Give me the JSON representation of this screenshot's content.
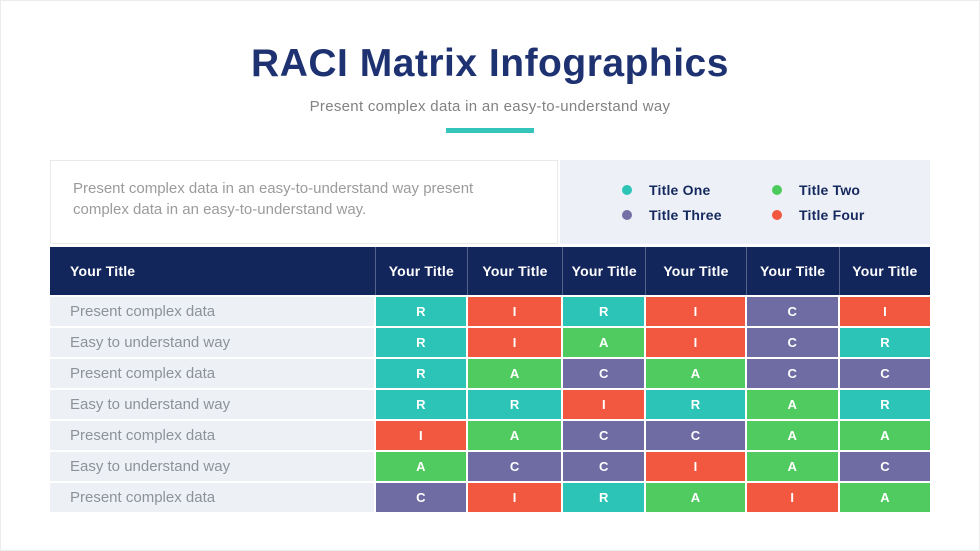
{
  "header": {
    "title": "RACI Matrix Infographics",
    "subtitle": "Present complex data in an easy-to-understand way"
  },
  "intro": {
    "text": "Present complex data in an easy-to-understand way present complex data in an easy-to-understand way."
  },
  "legend": {
    "items": [
      {
        "label": "Title One",
        "color": "#2BC4B6"
      },
      {
        "label": "Title Two",
        "color": "#4CCB5C"
      },
      {
        "label": "Title Three",
        "color": "#7470A5"
      },
      {
        "label": "Title Four",
        "color": "#F2573F"
      }
    ]
  },
  "colors": {
    "teal": "#2BC4B6",
    "green": "#50CB60",
    "purple": "#6F6CA4",
    "orange": "#F2583F",
    "header_navy": "#13265C",
    "title_navy": "#1E3272",
    "accent_teal": "#35C4BB",
    "legend_bg": "#EDF1F7",
    "row_label_bg": "#EDF1F6"
  },
  "chart_data": {
    "type": "table",
    "title": "RACI Matrix Infographics",
    "subtitle": "Present complex data in an easy-to-understand way",
    "legend_entries": [
      "Title One",
      "Title Two",
      "Title Three",
      "Title Four"
    ],
    "legend_position": "top-right",
    "columns": [
      "Your Title",
      "Your Title",
      "Your Title",
      "Your Title",
      "Your Title",
      "Your Title",
      "Your Title"
    ],
    "letter_colors": {
      "R": "teal",
      "A": "green",
      "C": "purple",
      "I": "orange"
    },
    "rows": [
      {
        "label": "Present complex data",
        "values": [
          "R",
          "I",
          "R",
          "I",
          "C",
          "I"
        ]
      },
      {
        "label": "Easy to understand way",
        "values": [
          "R",
          "I",
          "A",
          "I",
          "C",
          "R"
        ]
      },
      {
        "label": "Present complex data",
        "values": [
          "R",
          "A",
          "C",
          "A",
          "C",
          "C"
        ]
      },
      {
        "label": "Easy to understand way",
        "values": [
          "R",
          "R",
          "I",
          "R",
          "A",
          "R"
        ]
      },
      {
        "label": "Present complex data",
        "values": [
          "I",
          "A",
          "C",
          "C",
          "A",
          "A"
        ]
      },
      {
        "label": "Easy to understand way",
        "values": [
          "A",
          "C",
          "C",
          "I",
          "A",
          "C"
        ]
      },
      {
        "label": "Present complex data",
        "values": [
          "C",
          "I",
          "R",
          "A",
          "I",
          "A"
        ]
      }
    ]
  }
}
